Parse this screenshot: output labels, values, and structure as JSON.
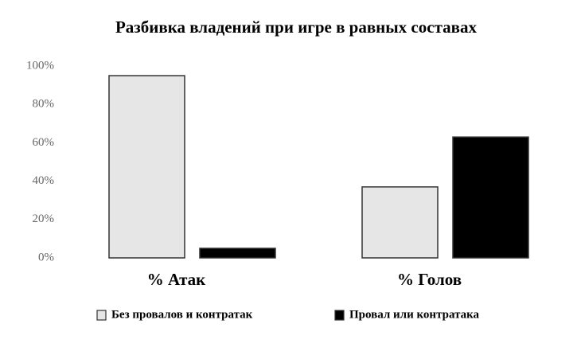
{
  "chart_data": {
    "type": "bar",
    "title": "Разбивка владений при игре в равных составах",
    "categories": [
      "% Атак",
      "% Голов"
    ],
    "series": [
      {
        "name": "Без провалов и контратак",
        "color": "#e6e6e6",
        "values": [
          95,
          37
        ]
      },
      {
        "name": "Провал или контратака",
        "color": "#000000",
        "values": [
          5,
          63
        ]
      }
    ],
    "ylim": [
      0,
      100
    ],
    "yticks": [
      {
        "value": 0,
        "label": "0%"
      },
      {
        "value": 20,
        "label": "20%"
      },
      {
        "value": 40,
        "label": "40%"
      },
      {
        "value": 60,
        "label": "60%"
      },
      {
        "value": 80,
        "label": "80%"
      },
      {
        "value": 100,
        "label": "100%"
      }
    ],
    "grid": false,
    "legend": "bottom"
  }
}
